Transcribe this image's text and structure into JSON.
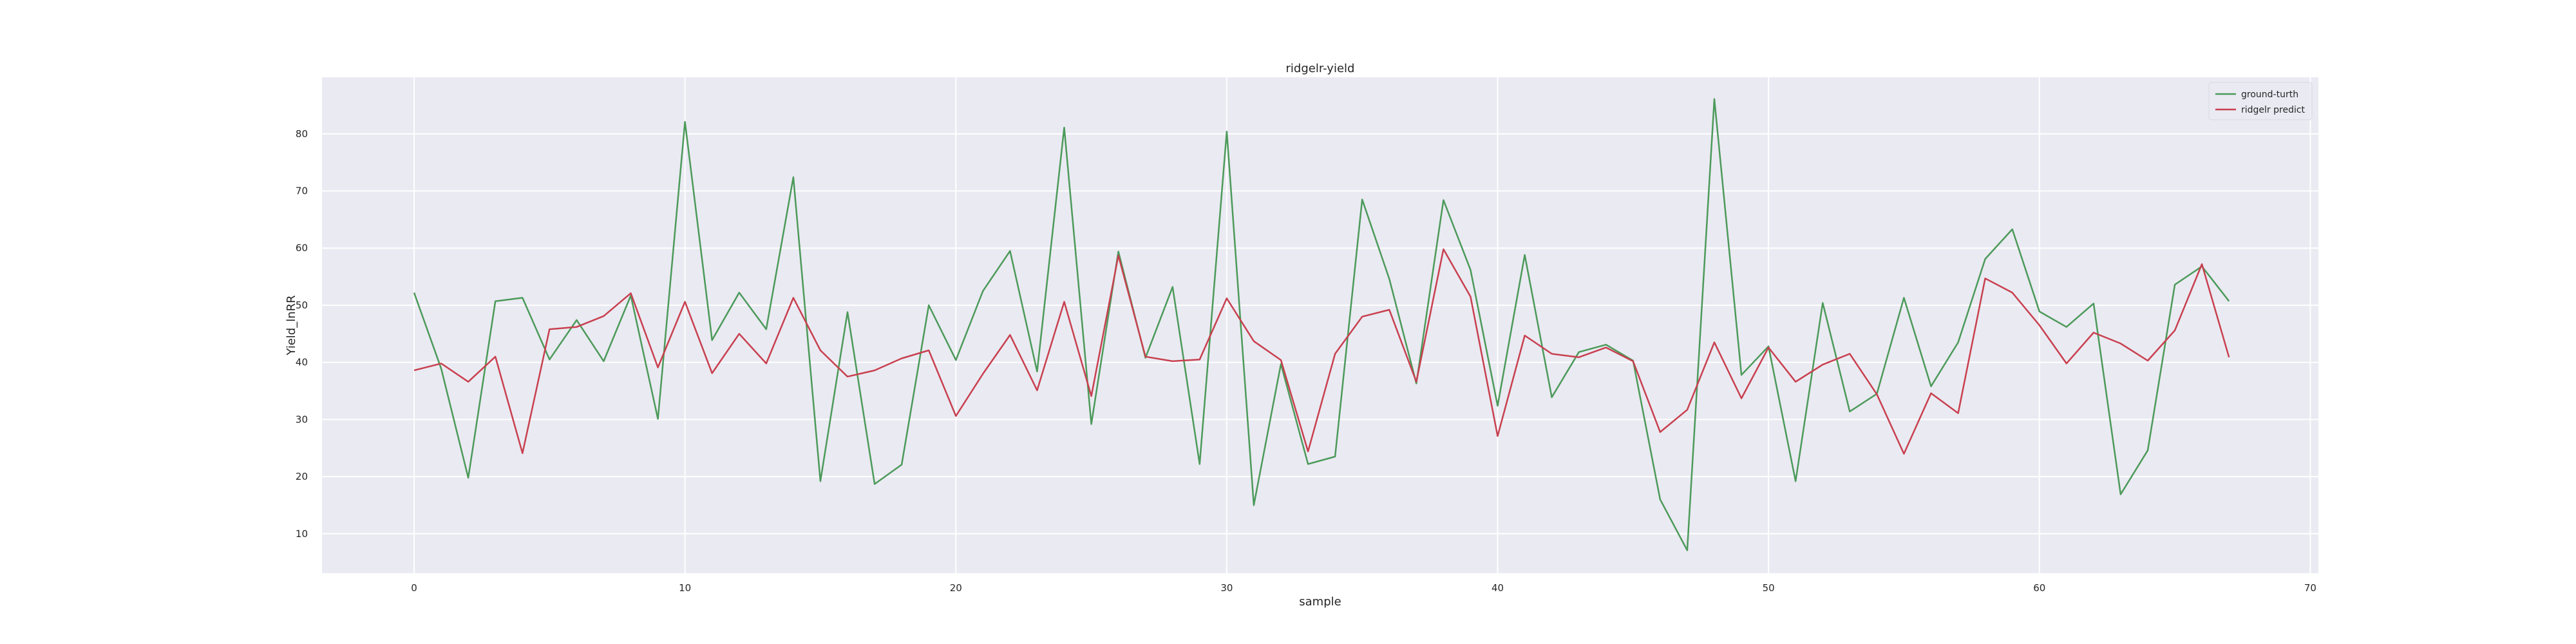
{
  "chart_data": {
    "type": "line",
    "title": "ridgelr-yield",
    "xlabel": "sample",
    "ylabel": "Yield_lnRR",
    "xlim": [
      -3.4,
      70.3
    ],
    "ylim": [
      3.1,
      89.9
    ],
    "xticks": [
      0,
      10,
      20,
      30,
      40,
      50,
      60,
      70
    ],
    "yticks": [
      10,
      20,
      30,
      40,
      50,
      60,
      70,
      80
    ],
    "grid": true,
    "legend_position": "top-right",
    "x": [
      0,
      1,
      2,
      3,
      4,
      5,
      6,
      7,
      8,
      9,
      10,
      11,
      12,
      13,
      14,
      15,
      16,
      17,
      18,
      19,
      20,
      21,
      22,
      23,
      24,
      25,
      26,
      27,
      28,
      29,
      30,
      31,
      32,
      33,
      34,
      35,
      36,
      37,
      38,
      39,
      40,
      41,
      42,
      43,
      44,
      45,
      46,
      47,
      48,
      49,
      50,
      51,
      52,
      53,
      54,
      55,
      56,
      57,
      58,
      59,
      60,
      61,
      62,
      63,
      64,
      65,
      66,
      67
    ],
    "series": [
      {
        "name": "ground-turth",
        "color": "#4c9a5a",
        "values": [
          52.2,
          38.9,
          19.8,
          50.7,
          51.3,
          40.5,
          47.4,
          40.2,
          51.7,
          30.1,
          82.1,
          43.9,
          52.2,
          45.8,
          72.4,
          19.2,
          48.8,
          18.7,
          22.1,
          50.0,
          40.4,
          52.5,
          59.5,
          38.4,
          81.1,
          29.2,
          59.4,
          40.8,
          53.2,
          22.2,
          80.4,
          15.0,
          39.7,
          22.2,
          23.5,
          68.5,
          54.6,
          36.3,
          68.4,
          56.2,
          32.4,
          58.8,
          33.9,
          41.8,
          43.1,
          40.3,
          16.0,
          7.1,
          86.1,
          37.8,
          42.8,
          19.2,
          50.4,
          31.4,
          34.5,
          51.3,
          35.8,
          43.5,
          58.1,
          63.3,
          48.9,
          46.2,
          50.3,
          16.9,
          24.6,
          53.6,
          56.8,
          50.7
        ]
      },
      {
        "name": "ridgelr predict",
        "color": "#c8404f",
        "values": [
          38.6,
          39.8,
          36.6,
          41.0,
          24.1,
          45.8,
          46.2,
          48.1,
          52.1,
          39.1,
          50.6,
          38.1,
          45.0,
          39.8,
          51.3,
          42.1,
          37.5,
          38.6,
          40.7,
          42.1,
          30.6,
          38.0,
          44.8,
          35.1,
          50.6,
          34.1,
          58.7,
          41.0,
          40.2,
          40.5,
          51.2,
          43.7,
          40.4,
          24.4,
          41.5,
          48.0,
          49.2,
          36.6,
          59.8,
          51.5,
          27.1,
          44.7,
          41.5,
          40.9,
          42.6,
          40.2,
          27.8,
          31.7,
          43.5,
          33.7,
          42.6,
          36.6,
          39.6,
          41.5,
          34.4,
          24.0,
          34.6,
          31.1,
          54.7,
          52.2,
          46.5,
          39.8,
          45.2,
          43.3,
          40.3,
          45.6,
          57.2,
          40.9
        ]
      }
    ]
  }
}
